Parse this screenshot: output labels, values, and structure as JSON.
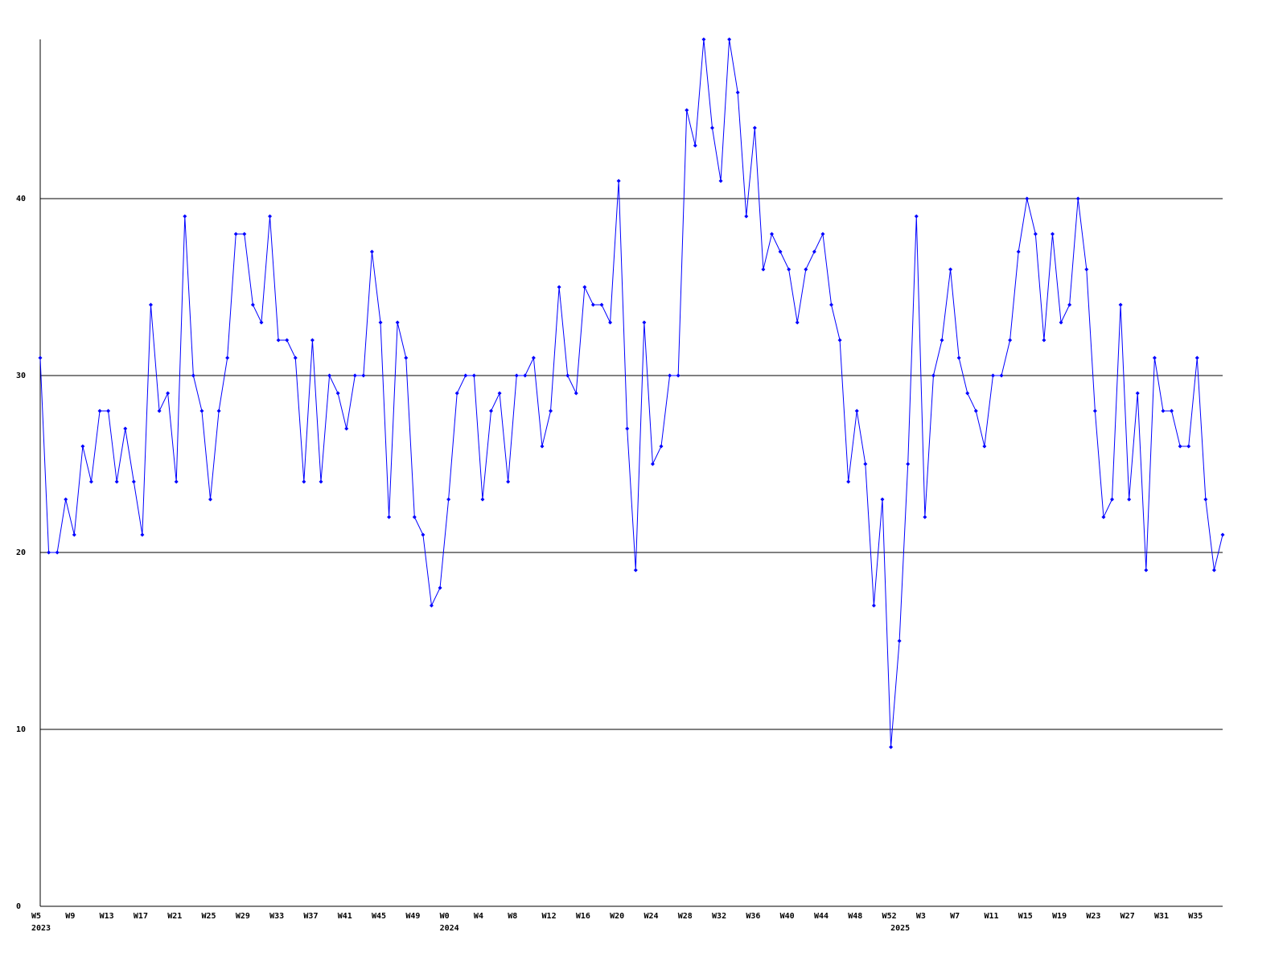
{
  "chart_data": {
    "type": "line",
    "categories": [
      "W5",
      null,
      null,
      null,
      "W9",
      null,
      null,
      null,
      "W13",
      null,
      null,
      null,
      "W17",
      null,
      null,
      null,
      "W21",
      null,
      null,
      null,
      "W25",
      null,
      null,
      null,
      "W29",
      null,
      null,
      null,
      "W33",
      null,
      null,
      null,
      "W37",
      null,
      null,
      null,
      "W41",
      null,
      null,
      null,
      "W45",
      null,
      null,
      null,
      "W49",
      null,
      null,
      null,
      "W0",
      null,
      null,
      null,
      "W4",
      null,
      null,
      null,
      "W8",
      null,
      null,
      null,
      "W12",
      null,
      null,
      null,
      "W16",
      null,
      null,
      null,
      "W20",
      null,
      null,
      null,
      "W24",
      null,
      null,
      null,
      "W28",
      null,
      null,
      null,
      "W32",
      null,
      null,
      null,
      "W36",
      null,
      null,
      null,
      "W40",
      null,
      null,
      null,
      "W44",
      null,
      null,
      null,
      "W48",
      null,
      null,
      null,
      "W52",
      null,
      null,
      null,
      "W3",
      null,
      null,
      null,
      "W7",
      null,
      null,
      null,
      "W11",
      null,
      null,
      null,
      "W15",
      null,
      null,
      null,
      "W19",
      null,
      null,
      null,
      "W23",
      null,
      null,
      null,
      "W27",
      null,
      null,
      null,
      "W31",
      null,
      null,
      null,
      "W35",
      null,
      null,
      null
    ],
    "category_years": [
      "2023",
      null,
      null,
      null,
      null,
      null,
      null,
      null,
      null,
      null,
      null,
      null,
      null,
      null,
      null,
      null,
      null,
      null,
      null,
      null,
      null,
      null,
      null,
      null,
      null,
      null,
      null,
      null,
      null,
      null,
      null,
      null,
      null,
      null,
      null,
      null,
      null,
      null,
      null,
      null,
      null,
      null,
      null,
      null,
      null,
      null,
      null,
      null,
      "2024",
      null,
      null,
      null,
      null,
      null,
      null,
      null,
      null,
      null,
      null,
      null,
      null,
      null,
      null,
      null,
      null,
      null,
      null,
      null,
      null,
      null,
      null,
      null,
      null,
      null,
      null,
      null,
      null,
      null,
      null,
      null,
      null,
      null,
      null,
      null,
      null,
      null,
      null,
      null,
      null,
      null,
      null,
      null,
      null,
      null,
      null,
      null,
      null,
      null,
      null,
      null,
      null,
      "2025",
      null,
      null,
      null,
      null,
      null,
      null,
      null,
      null,
      null,
      null,
      null,
      null,
      null,
      null,
      null,
      null,
      null,
      null,
      null,
      null,
      null,
      null,
      null,
      null,
      null,
      null,
      null,
      null,
      null,
      null,
      null,
      null,
      null,
      null,
      null,
      null,
      null,
      null
    ],
    "values": [
      31,
      20,
      20,
      23,
      21,
      26,
      24,
      28,
      28,
      24,
      27,
      24,
      21,
      34,
      28,
      29,
      24,
      39,
      30,
      28,
      23,
      28,
      31,
      38,
      38,
      34,
      33,
      39,
      32,
      32,
      31,
      24,
      32,
      24,
      30,
      29,
      27,
      30,
      30,
      37,
      33,
      22,
      33,
      31,
      22,
      21,
      17,
      18,
      23,
      29,
      30,
      30,
      23,
      28,
      29,
      24,
      30,
      30,
      31,
      26,
      28,
      35,
      30,
      29,
      35,
      34,
      34,
      33,
      41,
      27,
      19,
      33,
      25,
      26,
      30,
      30,
      45,
      43,
      49,
      44,
      41,
      49,
      46,
      39,
      44,
      36,
      38,
      37,
      36,
      33,
      36,
      37,
      38,
      34,
      32,
      24,
      28,
      25,
      17,
      23,
      9,
      15,
      25,
      39,
      22,
      30,
      32,
      36,
      31,
      29,
      28,
      26,
      30,
      30,
      32,
      37,
      40,
      38,
      32,
      38,
      33,
      34,
      40,
      36,
      28,
      22,
      23,
      34,
      23,
      29,
      19,
      31,
      28,
      28,
      26,
      26,
      31,
      23,
      19,
      21
    ],
    "color": "#0000ff",
    "ylim": [
      0,
      49
    ],
    "yticks": [
      0,
      10,
      20,
      30,
      40
    ],
    "grid": true
  }
}
